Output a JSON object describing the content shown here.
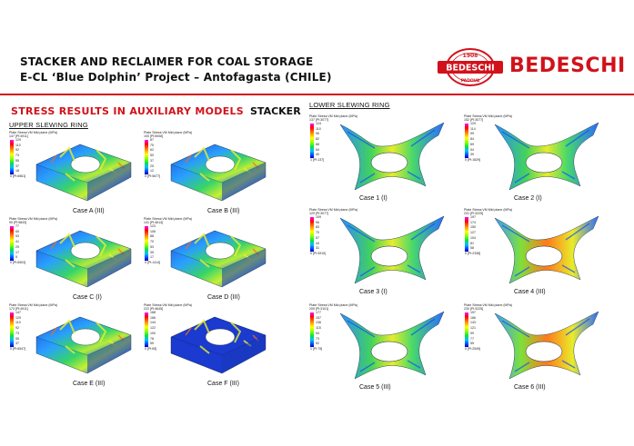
{
  "header": {
    "title_line1": "STACKER AND RECLAIMER FOR COAL STORAGE",
    "title_line2": "E-CL ‘Blue Dolphin’ Project – Antofagasta (CHILE)",
    "logo": {
      "seal_year": "1908",
      "seal_name": "BEDESCHI",
      "seal_city": "PADOVA",
      "wordmark": "BEDESCHI",
      "brand_color": "#d1121b"
    }
  },
  "section": {
    "title": "STRESS RESULTS IN AUXILIARY MODELS",
    "machine": "STACKER",
    "upper_label": "UPPER SLEWING RING",
    "lower_label": "LOWER SLEWING RING"
  },
  "legend_title": "Plate Stress:VM Mid plane (MPa)",
  "upper_cases": [
    {
      "caption": "Case A (III)",
      "max": "147 [Pl:4911]",
      "ticks": [
        "129",
        "110",
        "92",
        "73",
        "55",
        "37",
        "18"
      ],
      "min": "0 [Pl:6561]"
    },
    {
      "caption": "Case B (III)",
      "max": "100 [Pl:5008]",
      "ticks": [
        "87",
        "75",
        "62",
        "50",
        "37",
        "25",
        "12"
      ],
      "min": "0 [Pl:5677]"
    },
    {
      "caption": "Case C (I)",
      "max": "90 [Pl:5843]",
      "ticks": [
        "77",
        "65",
        "53",
        "41",
        "29",
        "17",
        "5"
      ],
      "min": "0 [Pl:6503]"
    },
    {
      "caption": "Case D (III)",
      "max": "141 [Pl:4614]",
      "ticks": [
        "123",
        "106",
        "88",
        "70",
        "53",
        "35",
        "17"
      ],
      "min": "0 [Pl:1414]"
    },
    {
      "caption": "Case E (III)",
      "max": "173 [Pl:4911]",
      "ticks": [
        "147",
        "129",
        "110",
        "92",
        "73",
        "55",
        "37"
      ],
      "min": "0 [Pl:6547]"
    },
    {
      "caption": "Case F (III)",
      "max": "222 [Pl:4645]",
      "ticks": [
        "188",
        "166",
        "144",
        "122",
        "100",
        "78",
        "55"
      ],
      "min": "0 [Pl:65]"
    }
  ],
  "lower_cases": [
    {
      "caption": "Case 1 (I)",
      "max": "137 [Pl:3077]",
      "ticks": [
        "124",
        "110",
        "96",
        "82",
        "68",
        "54",
        "40"
      ],
      "min": "1 [Pl:137]"
    },
    {
      "caption": "Case 2 (I)",
      "max": "152 [Pl:3077]",
      "ticks": [
        "129",
        "114",
        "99",
        "84",
        "69",
        "54",
        "39"
      ],
      "min": "0 [Pl:1629]"
    },
    {
      "caption": "Case 3 (I)",
      "max": "129 [Pl:3077]",
      "ticks": [
        "109",
        "96",
        "83",
        "70",
        "57",
        "44",
        "31"
      ],
      "min": "0 [Pl:4910]"
    },
    {
      "caption": "Case 4 (III)",
      "max": "231 [Pl:3225]",
      "ticks": [
        "197",
        "174",
        "150",
        "127",
        "104",
        "81",
        "58"
      ],
      "min": "0 [Pl:2338]"
    },
    {
      "caption": "Case 5 (III)",
      "max": "209 [Pl:3101]",
      "ticks": [
        "177",
        "157",
        "136",
        "115",
        "94",
        "73",
        "52"
      ],
      "min": "1 [Pl:75]"
    },
    {
      "caption": "Case 6 (III)",
      "max": "230 [Pl:3225]",
      "ticks": [
        "197",
        "166",
        "143",
        "121",
        "99",
        "77",
        "55"
      ],
      "min": "0 [Pl:2549]"
    }
  ]
}
